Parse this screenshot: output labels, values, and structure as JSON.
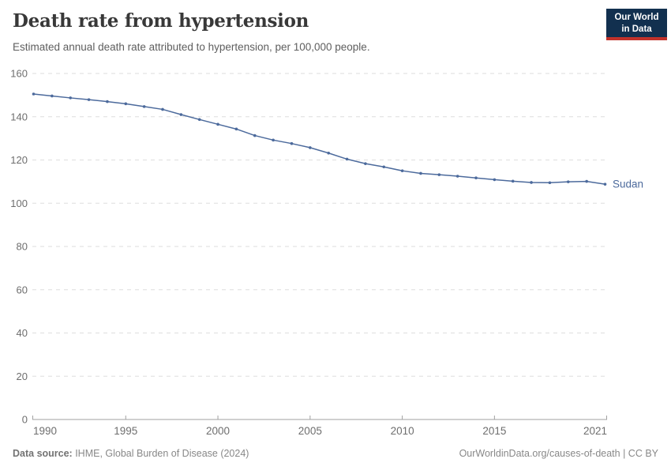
{
  "header": {
    "title": "Death rate from hypertension",
    "subtitle": "Estimated annual death rate attributed to hypertension, per 100,000 people.",
    "logo": {
      "line1": "Our World",
      "line2": "in Data",
      "bg_color": "#12304f",
      "accent_color": "#c2322b"
    }
  },
  "chart_data": {
    "type": "line",
    "title": "Death rate from hypertension",
    "ylabel": "",
    "xlabel": "",
    "unit": "deaths per 100,000 people",
    "xlim": [
      1990,
      2021
    ],
    "ylim": [
      0,
      160
    ],
    "x_ticks": [
      1990,
      1995,
      2000,
      2005,
      2010,
      2015,
      2021
    ],
    "y_ticks": [
      0,
      20,
      40,
      60,
      80,
      100,
      120,
      140,
      160
    ],
    "grid": "horizontal-dashed",
    "legend_position": "end-of-line-label",
    "x": [
      1990,
      1991,
      1992,
      1993,
      1994,
      1995,
      1996,
      1997,
      1998,
      1999,
      2000,
      2001,
      2002,
      2003,
      2004,
      2005,
      2006,
      2007,
      2008,
      2009,
      2010,
      2011,
      2012,
      2013,
      2014,
      2015,
      2016,
      2017,
      2018,
      2019,
      2020,
      2021
    ],
    "series": [
      {
        "name": "Sudan",
        "color": "#4c6a9c",
        "values": [
          150.5,
          149.6,
          148.7,
          147.9,
          147.0,
          146.0,
          144.7,
          143.4,
          141.0,
          138.7,
          136.5,
          134.3,
          131.3,
          129.2,
          127.6,
          125.7,
          123.2,
          120.4,
          118.3,
          116.8,
          115.0,
          113.8,
          113.2,
          112.5,
          111.7,
          110.9,
          110.2,
          109.6,
          109.5,
          109.9,
          110.1,
          108.8
        ]
      }
    ]
  },
  "footer": {
    "source_label": "Data source:",
    "source_text": " IHME, Global Burden of Disease (2024)",
    "link_text": "OurWorldinData.org/causes-of-death | CC BY"
  }
}
